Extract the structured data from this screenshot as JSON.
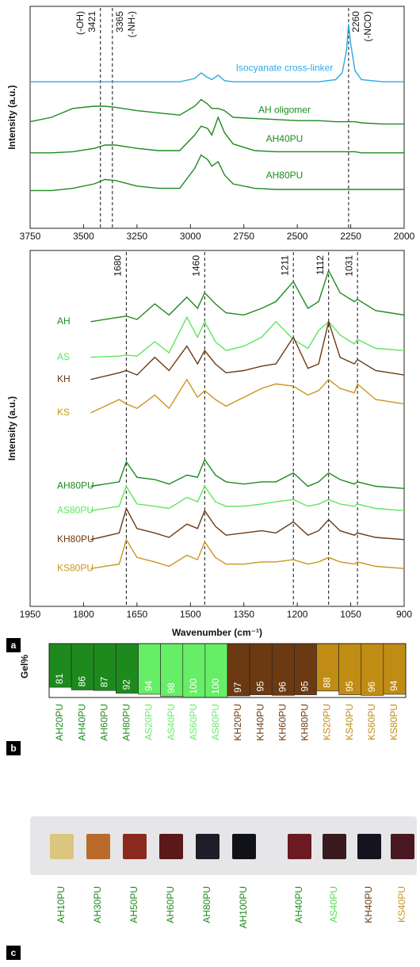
{
  "chart_data": [
    {
      "type": "line",
      "ylabel": "Intensity (a.u.)",
      "x": [
        3750,
        3650,
        3550,
        3450,
        3400,
        3350,
        3250,
        3150,
        3050,
        2980,
        2950,
        2920,
        2900,
        2870,
        2840,
        2800,
        2700,
        2600,
        2500,
        2400,
        2320,
        2290,
        2270,
        2260,
        2250,
        2230,
        2200,
        2100,
        2000
      ],
      "xlim": [
        3750,
        2000
      ],
      "xticks": [
        3750,
        3500,
        3250,
        3000,
        2750,
        2500,
        2250,
        2000
      ],
      "ylim": [
        0,
        10
      ],
      "series": [
        {
          "name": "Isocyanate cross-linker",
          "color": "#29abe2",
          "values": [
            6.6,
            6.6,
            6.6,
            6.6,
            6.6,
            6.6,
            6.6,
            6.6,
            6.6,
            6.75,
            7.0,
            6.8,
            6.7,
            6.9,
            6.65,
            6.6,
            6.6,
            6.6,
            6.6,
            6.6,
            6.7,
            7.0,
            8.0,
            9.2,
            8.3,
            7.1,
            6.7,
            6.6,
            6.6
          ]
        },
        {
          "name": "AH oligomer",
          "color": "#1e8a1e",
          "values": [
            4.8,
            5.0,
            5.4,
            5.5,
            5.5,
            5.45,
            5.3,
            5.2,
            5.1,
            5.5,
            5.8,
            5.6,
            5.4,
            5.4,
            5.3,
            5.0,
            4.95,
            4.9,
            4.85,
            4.85,
            4.8,
            4.8,
            4.8,
            4.8,
            4.8,
            4.8,
            4.75,
            4.7,
            4.7
          ]
        },
        {
          "name": "AH40PU",
          "color": "#1e8a1e",
          "values": [
            3.4,
            3.4,
            3.45,
            3.6,
            3.75,
            3.75,
            3.6,
            3.5,
            3.5,
            4.2,
            4.6,
            4.5,
            4.2,
            5.0,
            4.3,
            3.8,
            3.5,
            3.45,
            3.45,
            3.45,
            3.45,
            3.45,
            3.45,
            3.45,
            3.45,
            3.45,
            3.4,
            3.4,
            3.4
          ]
        },
        {
          "name": "AH80PU",
          "color": "#1e8a1e",
          "values": [
            1.7,
            1.7,
            1.8,
            2.0,
            2.2,
            2.15,
            1.9,
            1.8,
            1.8,
            2.7,
            3.3,
            3.1,
            2.8,
            3.0,
            2.4,
            2.0,
            1.8,
            1.75,
            1.75,
            1.75,
            1.75,
            1.75,
            1.75,
            1.75,
            1.75,
            1.75,
            1.75,
            1.75,
            1.75
          ]
        }
      ],
      "annotations": [
        {
          "x": 3421,
          "note": "(-OH)"
        },
        {
          "x": 3365,
          "note": "(-NH-)"
        },
        {
          "x": 2260,
          "note": "(-NCO)"
        }
      ]
    },
    {
      "type": "line",
      "panel_label": "a",
      "xlabel": "Wavenumber (cm⁻¹)",
      "ylabel": "Intensity (a.u.)",
      "x": [
        1780,
        1700,
        1680,
        1650,
        1600,
        1560,
        1510,
        1480,
        1460,
        1430,
        1400,
        1350,
        1300,
        1260,
        1211,
        1170,
        1140,
        1112,
        1080,
        1040,
        1031,
        980,
        900
      ],
      "xlim": [
        1950,
        900
      ],
      "xticks": [
        1950,
        1800,
        1650,
        1500,
        1350,
        1200,
        1050,
        900
      ],
      "ylim": [
        0,
        16
      ],
      "series": [
        {
          "name": "AH",
          "color": "#1e8a1e",
          "values": [
            12.8,
            13.0,
            13.05,
            12.9,
            13.6,
            13.1,
            13.9,
            13.4,
            14.1,
            13.6,
            13.2,
            13.1,
            13.4,
            13.7,
            14.6,
            13.4,
            13.7,
            15.1,
            14.1,
            13.7,
            13.8,
            13.3,
            13.1
          ]
        },
        {
          "name": "AS",
          "color": "#5ee65e",
          "values": [
            11.2,
            11.25,
            11.3,
            11.25,
            11.9,
            11.4,
            13.0,
            12.1,
            12.8,
            11.9,
            11.5,
            11.7,
            12.1,
            12.8,
            12.0,
            11.6,
            12.4,
            12.8,
            12.2,
            11.8,
            12.0,
            11.6,
            11.5
          ]
        },
        {
          "name": "KH",
          "color": "#6b3a12",
          "values": [
            10.2,
            10.5,
            10.6,
            10.4,
            11.2,
            10.6,
            11.7,
            10.9,
            11.5,
            10.9,
            10.5,
            10.6,
            10.8,
            10.9,
            12.1,
            10.7,
            10.9,
            12.8,
            11.2,
            10.9,
            11.1,
            10.6,
            10.4
          ]
        },
        {
          "name": "KS",
          "color": "#c8961e",
          "values": [
            8.7,
            9.3,
            9.1,
            8.9,
            9.5,
            8.9,
            10.2,
            9.4,
            9.7,
            9.3,
            9.0,
            9.4,
            9.8,
            10.0,
            9.9,
            9.5,
            9.7,
            10.2,
            9.8,
            9.6,
            10.0,
            9.3,
            9.1
          ]
        },
        {
          "name": "AH80PU",
          "color": "#1e8a1e",
          "values": [
            5.4,
            5.6,
            6.5,
            5.8,
            5.7,
            5.5,
            5.9,
            5.8,
            6.6,
            5.9,
            5.6,
            5.5,
            5.6,
            5.6,
            6.0,
            5.4,
            5.6,
            6.0,
            5.7,
            5.5,
            5.6,
            5.4,
            5.3
          ]
        },
        {
          "name": "AS80PU",
          "color": "#5ee65e",
          "values": [
            4.3,
            4.5,
            5.4,
            4.6,
            4.5,
            4.4,
            4.9,
            4.7,
            5.4,
            4.7,
            4.5,
            4.5,
            4.6,
            4.7,
            4.8,
            4.5,
            4.6,
            4.8,
            4.6,
            4.5,
            4.6,
            4.4,
            4.3
          ]
        },
        {
          "name": "KH80PU",
          "color": "#6b3a12",
          "values": [
            3.0,
            3.3,
            4.4,
            3.5,
            3.3,
            3.1,
            3.7,
            3.5,
            4.3,
            3.6,
            3.2,
            3.3,
            3.4,
            3.3,
            3.8,
            3.2,
            3.4,
            3.9,
            3.4,
            3.2,
            3.3,
            3.1,
            3.0
          ]
        },
        {
          "name": "KS80PU",
          "color": "#c8961e",
          "values": [
            1.7,
            1.9,
            3.0,
            2.2,
            2.0,
            1.8,
            2.3,
            2.1,
            2.9,
            2.2,
            1.9,
            1.9,
            2.0,
            2.0,
            2.1,
            1.9,
            2.0,
            2.2,
            2.0,
            1.9,
            2.0,
            1.8,
            1.7
          ]
        }
      ],
      "annotations": [
        {
          "x": 1680
        },
        {
          "x": 1460
        },
        {
          "x": 1211
        },
        {
          "x": 1112
        },
        {
          "x": 1031
        }
      ]
    },
    {
      "type": "bar",
      "panel_label": "b",
      "ylabel": "Gel%",
      "categories": [
        "AH20PU",
        "AH40PU",
        "AH60PU",
        "AH80PU",
        "AS20PU",
        "AS40PU",
        "AS60PU",
        "AS80PU",
        "KH20PU",
        "KH40PU",
        "KH60PU",
        "KH80PU",
        "KS20PU",
        "KS40PU",
        "KS60PU",
        "KS80PU"
      ],
      "values": [
        81,
        86,
        87,
        92,
        94,
        98,
        100,
        100,
        97,
        95,
        96,
        95,
        88,
        95,
        96,
        94
      ],
      "colors": [
        "#1e8a1e",
        "#1e8a1e",
        "#1e8a1e",
        "#1e8a1e",
        "#66ee66",
        "#66ee66",
        "#66ee66",
        "#66ee66",
        "#6b3a12",
        "#6b3a12",
        "#6b3a12",
        "#6b3a12",
        "#c08c14",
        "#c08c14",
        "#c08c14",
        "#c08c14"
      ],
      "ylim": [
        0,
        100
      ]
    }
  ],
  "photo": {
    "panel_label": "c",
    "samples": [
      {
        "name": "AH10PU",
        "color": "#1e8a1e",
        "swatch": "#dcc57c"
      },
      {
        "name": "AH30PU",
        "color": "#1e8a1e",
        "swatch": "#b86b2a"
      },
      {
        "name": "AH50PU",
        "color": "#1e8a1e",
        "swatch": "#8a2a1e"
      },
      {
        "name": "AH60PU",
        "color": "#1e8a1e",
        "swatch": "#5a1818"
      },
      {
        "name": "AH80PU",
        "color": "#1e8a1e",
        "swatch": "#1e1e2a"
      },
      {
        "name": "AH100PU",
        "color": "#1e8a1e",
        "swatch": "#111118"
      },
      {
        "name": "AH40PU",
        "color": "#1e8a1e",
        "swatch": "#6a1a20"
      },
      {
        "name": "AS40PU",
        "color": "#55dd55",
        "swatch": "#3a1a1e"
      },
      {
        "name": "KH40PU",
        "color": "#6b3a12",
        "swatch": "#141420"
      },
      {
        "name": "KS40PU",
        "color": "#c8961e",
        "swatch": "#4a1820"
      }
    ]
  }
}
